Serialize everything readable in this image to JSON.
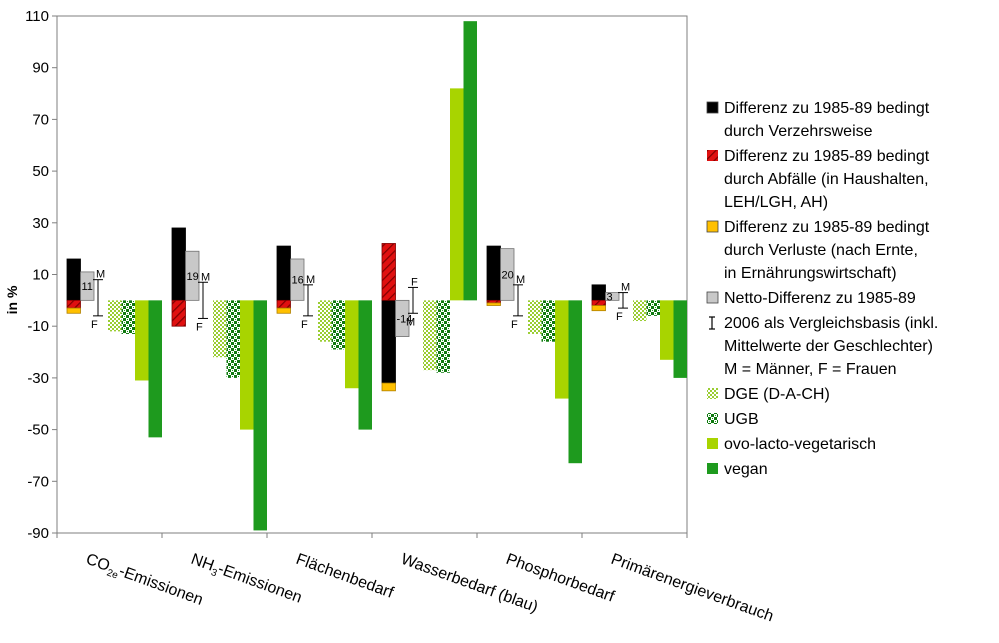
{
  "chart_data": {
    "type": "bar",
    "ylabel": "in %",
    "ylim": [
      -90,
      110
    ],
    "yticks": [
      110,
      90,
      70,
      50,
      30,
      10,
      -10,
      -30,
      -50,
      -70,
      -90
    ],
    "categories": [
      {
        "pre": "CO",
        "sub": "2e",
        "post": "-Emissionen"
      },
      {
        "pre": "NH",
        "sub": "3",
        "post": "-Emissionen"
      },
      {
        "pre": "Flächenbedarf",
        "sub": "",
        "post": ""
      },
      {
        "pre": "Wasserbedarf (blau)",
        "sub": "",
        "post": ""
      },
      {
        "pre": "Phosphorbedarf",
        "sub": "",
        "post": ""
      },
      {
        "pre": "Primärenergieverbrauch",
        "sub": "",
        "post": ""
      }
    ],
    "legend_placement": "right",
    "legend": [
      {
        "key": "verzehr",
        "lines": [
          "Differenz zu 1985-89 bedingt",
          "durch Verzehrsweise"
        ],
        "color": "#000000",
        "pattern": "solid"
      },
      {
        "key": "abfall",
        "lines": [
          "Differenz zu 1985-89 bedingt",
          "durch Abfälle (in Haushalten,",
          "LEH/LGH, AH)"
        ],
        "color": "#c00000",
        "pattern": "hatch"
      },
      {
        "key": "verlust",
        "lines": [
          "Differenz zu 1985-89 bedingt",
          "durch Verluste (nach Ernte,",
          "in Ernährungswirtschaft)"
        ],
        "color": "#ffc000",
        "pattern": "solid"
      },
      {
        "key": "netto",
        "lines": [
          "Netto-Differenz zu 1985-89"
        ],
        "color": "#c8c8c8",
        "pattern": "solid"
      },
      {
        "key": "basis",
        "lines": [
          "2006 als Vergleichsbasis (inkl.",
          "Mittelwerte der Geschlechter)",
          "M = Männer, F = Frauen"
        ],
        "color": "#000000",
        "pattern": "errorbar"
      },
      {
        "key": "dge",
        "lines": [
          "DGE (D-A-CH)"
        ],
        "color": "#9acd32",
        "pattern": "dots"
      },
      {
        "key": "ugb",
        "lines": [
          "UGB"
        ],
        "color": "#1e9a1e",
        "pattern": "checker"
      },
      {
        "key": "ovo",
        "lines": [
          "ovo-lacto-vegetarisch"
        ],
        "color": "#a8d400",
        "pattern": "solid"
      },
      {
        "key": "vegan",
        "lines": [
          "vegan"
        ],
        "color": "#1e9a1e",
        "pattern": "solid"
      }
    ],
    "series": [
      {
        "name": "Differenz zu 1985-89 bedingt durch Verzehrsweise",
        "values": [
          16,
          28,
          21,
          -32,
          21,
          6
        ]
      },
      {
        "name": "Differenz zu 1985-89 bedingt durch Abfälle",
        "values": [
          -3,
          -10,
          -3,
          22,
          -1,
          -2
        ]
      },
      {
        "name": "Differenz zu 1985-89 bedingt durch Verluste",
        "values": [
          -2,
          0,
          -2,
          -3,
          -1,
          -2
        ]
      },
      {
        "name": "Netto-Differenz zu 1985-89",
        "values": [
          11,
          19,
          16,
          -14,
          20,
          3
        ]
      },
      {
        "name": "DGE (D-A-CH)",
        "values": [
          -12,
          -22,
          -16,
          -27,
          -13,
          -8
        ]
      },
      {
        "name": "UGB",
        "values": [
          -13,
          -30,
          -19,
          -28,
          -16,
          -6
        ]
      },
      {
        "name": "ovo-lacto-vegetarisch",
        "values": [
          -31,
          -50,
          -34,
          82,
          -38,
          -23
        ]
      },
      {
        "name": "vegan",
        "values": [
          -53,
          -89,
          -50,
          108,
          -63,
          -30
        ]
      }
    ],
    "netto_labels": [
      "11",
      "19",
      "16",
      "-14",
      "20",
      "3"
    ],
    "vergleichsbasis": [
      {
        "m_label": "M",
        "f_label": "F",
        "m": 8,
        "f": -6,
        "label_top": "M"
      },
      {
        "m_label": "M",
        "f_label": "F",
        "m": 7,
        "f": -7,
        "label_top": "M"
      },
      {
        "m_label": "M",
        "f_label": "F",
        "m": 6,
        "f": -6,
        "label_top": "M"
      },
      {
        "m_label": "M",
        "f_label": "F",
        "m": 5,
        "f": -5,
        "label_top": "F"
      },
      {
        "m_label": "M",
        "f_label": "F",
        "m": 6,
        "f": -6,
        "label_top": "M"
      },
      {
        "m_label": "M",
        "f_label": "F",
        "m": 3,
        "f": -3,
        "label_top": "M"
      }
    ],
    "grid": false
  }
}
